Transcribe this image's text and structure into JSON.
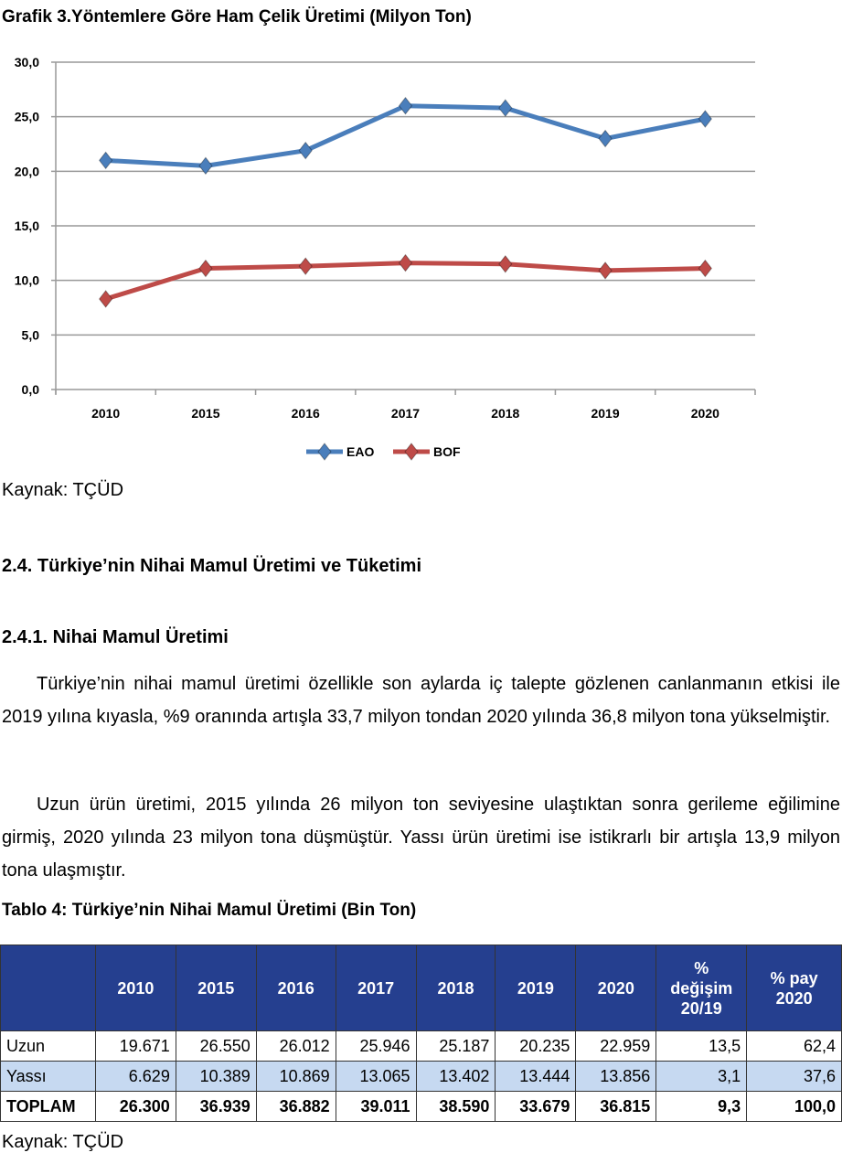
{
  "chart_title": "Grafik 3.Yöntemlere Göre Ham Çelik Üretimi (Milyon Ton)",
  "chart_data": {
    "type": "line",
    "title": "Grafik 3.Yöntemlere Göre Ham Çelik Üretimi (Milyon Ton)",
    "categories": [
      "2010",
      "2015",
      "2016",
      "2017",
      "2018",
      "2019",
      "2020"
    ],
    "ylim": [
      0,
      30
    ],
    "yticks": [
      "0,0",
      "5,0",
      "10,0",
      "15,0",
      "20,0",
      "25,0",
      "30,0"
    ],
    "grid": true,
    "legend": "bottom",
    "series": [
      {
        "name": "EAO",
        "color": "#4a7ebb",
        "values": [
          21.0,
          20.5,
          21.9,
          26.0,
          25.8,
          23.0,
          24.8
        ]
      },
      {
        "name": "BOF",
        "color": "#be4b48",
        "values": [
          8.3,
          11.1,
          11.3,
          11.6,
          11.5,
          10.9,
          11.1
        ]
      }
    ]
  },
  "source1": "Kaynak: TÇÜD",
  "section_heading": "2.4. Türkiye’nin Nihai Mamul Üretimi ve Tüketimi",
  "subsection_heading": "2.4.1. Nihai Mamul Üretimi",
  "paragraph1": "Türkiye’nin nihai mamul üretimi özellikle son aylarda iç talepte gözlenen canlanma­nın etkisi ile 2019 yılına kıyasla, %9 oranında artışla 33,7 milyon tondan 2020 yılında 36,8 milyon tona yükselmiştir.",
  "paragraph2": "Uzun ürün üretimi, 2015 yılında 26 milyon ton seviyesine ulaştıktan sonra gerileme eğilimine girmiş, 2020 yılında 23 milyon tona düşmüştür. Yassı ürün üretimi ise istikrarlı bir artışla 13,9 milyon tona ulaşmıştır.",
  "table_title": "Tablo 4: Türkiye’nin Nihai Mamul Üretimi (Bin Ton)",
  "table": {
    "headers": [
      "",
      "2010",
      "2015",
      "2016",
      "2017",
      "2018",
      "2019",
      "2020",
      "% değişim 20/19",
      "% pay 2020"
    ],
    "rows": [
      [
        "Uzun",
        "19.671",
        "26.550",
        "26.012",
        "25.946",
        "25.187",
        "20.235",
        "22.959",
        "13,5",
        "62,4"
      ],
      [
        "Yassı",
        "6.629",
        "10.389",
        "10.869",
        "13.065",
        "13.402",
        "13.444",
        "13.856",
        "3,1",
        "37,6"
      ],
      [
        "TOPLAM",
        "26.300",
        "36.939",
        "36.882",
        "39.011",
        "38.590",
        "33.679",
        "36.815",
        "9,3",
        "100,0"
      ]
    ]
  },
  "source2": "Kaynak: TÇÜD"
}
